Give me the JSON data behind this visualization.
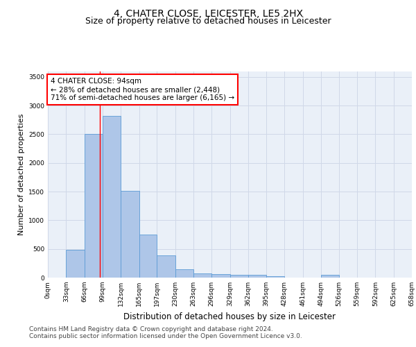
{
  "title": "4, CHATER CLOSE, LEICESTER, LE5 2HX",
  "subtitle": "Size of property relative to detached houses in Leicester",
  "xlabel": "Distribution of detached houses by size in Leicester",
  "ylabel": "Number of detached properties",
  "bin_edges": [
    0,
    33,
    66,
    99,
    132,
    165,
    197,
    230,
    263,
    296,
    329,
    362,
    395,
    428,
    461,
    494,
    526,
    559,
    592,
    625,
    658
  ],
  "bin_counts": [
    5,
    480,
    2500,
    2820,
    1510,
    750,
    390,
    140,
    75,
    55,
    45,
    45,
    25,
    5,
    5,
    45,
    5,
    5,
    5,
    5
  ],
  "bar_color": "#aec6e8",
  "bar_edge_color": "#5b9bd5",
  "vline_x": 94,
  "vline_color": "#ff0000",
  "annotation_text": "4 CHATER CLOSE: 94sqm\n← 28% of detached houses are smaller (2,448)\n71% of semi-detached houses are larger (6,165) →",
  "annotation_box_color": "#ffffff",
  "annotation_box_edge": "#ff0000",
  "ylim": [
    0,
    3600
  ],
  "yticks": [
    0,
    500,
    1000,
    1500,
    2000,
    2500,
    3000,
    3500
  ],
  "tick_labels": [
    "0sqm",
    "33sqm",
    "66sqm",
    "99sqm",
    "132sqm",
    "165sqm",
    "197sqm",
    "230sqm",
    "263sqm",
    "296sqm",
    "329sqm",
    "362sqm",
    "395sqm",
    "428sqm",
    "461sqm",
    "494sqm",
    "526sqm",
    "559sqm",
    "592sqm",
    "625sqm",
    "658sqm"
  ],
  "grid_color": "#d0d8e8",
  "background_color": "#eaf0f8",
  "footer_line1": "Contains HM Land Registry data © Crown copyright and database right 2024.",
  "footer_line2": "Contains public sector information licensed under the Open Government Licence v3.0.",
  "title_fontsize": 10,
  "subtitle_fontsize": 9,
  "xlabel_fontsize": 8.5,
  "ylabel_fontsize": 8,
  "tick_fontsize": 6.5,
  "footer_fontsize": 6.5,
  "annotation_fontsize": 7.5
}
